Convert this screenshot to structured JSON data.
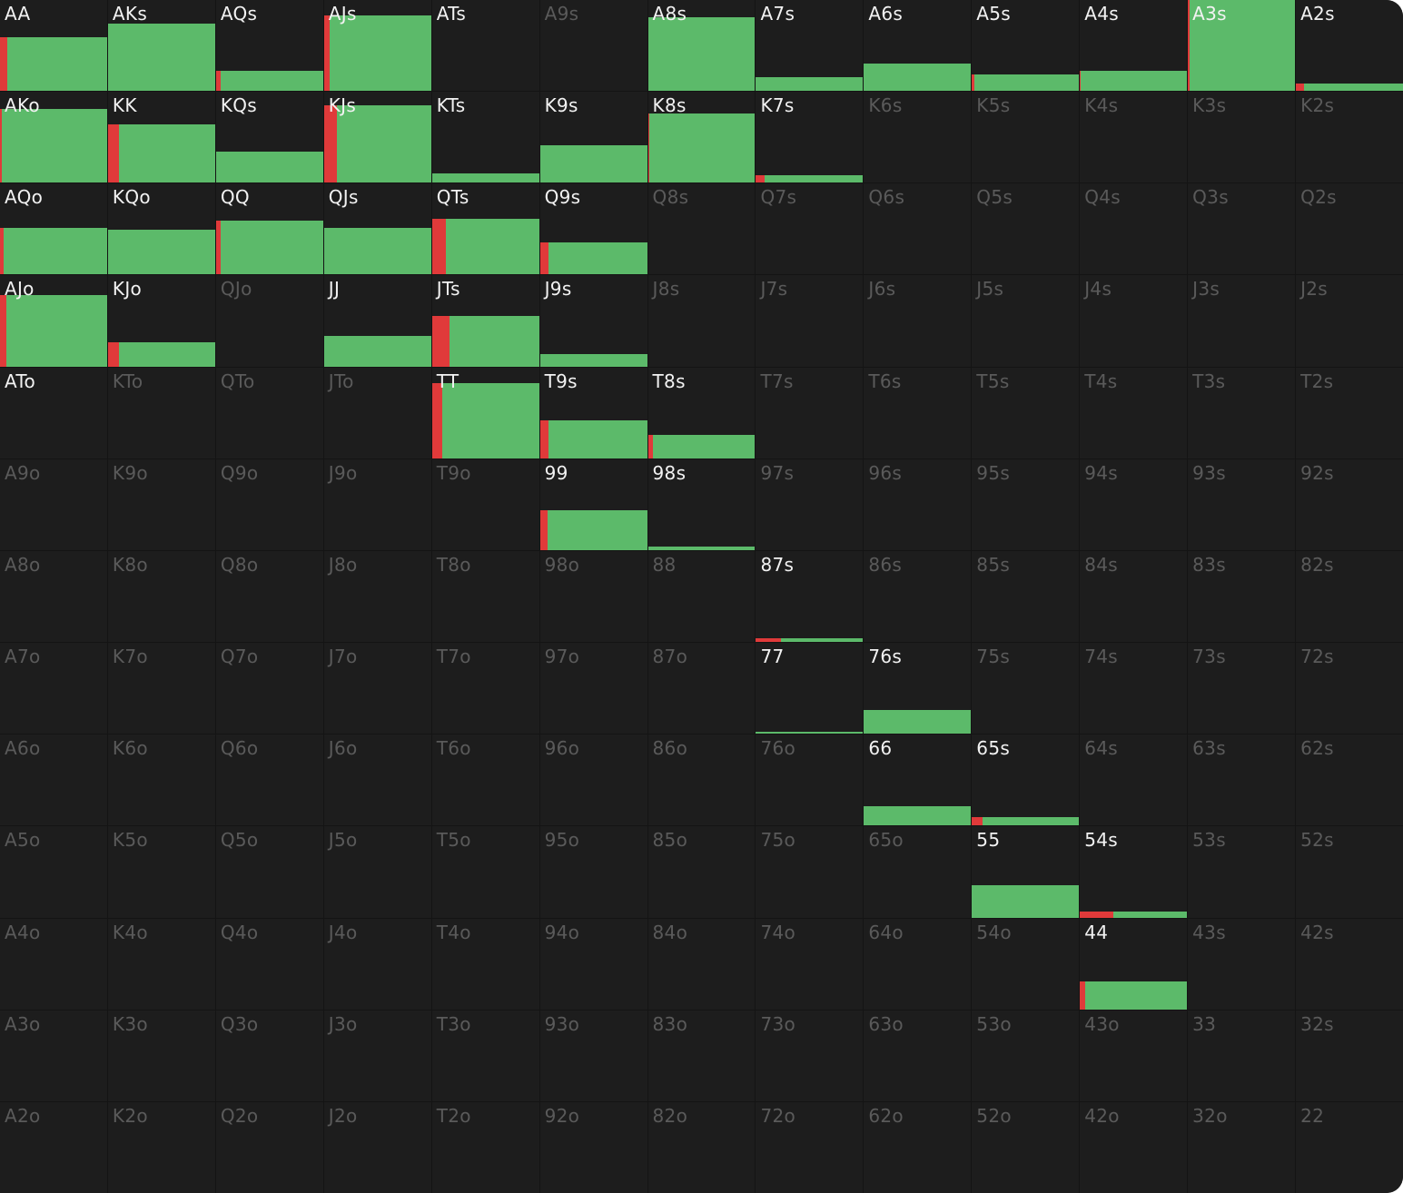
{
  "range_grid": {
    "colors": {
      "raise": "#e03a3a",
      "call": "#5cba6a",
      "cell_bg": "#1d1d1d",
      "inactive_text": "#5a5a5a",
      "active_text": "#f2f2f2"
    },
    "cells": [
      {
        "hand": "AA",
        "active": true,
        "freq": 0.59,
        "raise": 0.07
      },
      {
        "hand": "AKs",
        "active": true,
        "freq": 0.74,
        "raise": 0
      },
      {
        "hand": "AQs",
        "active": true,
        "freq": 0.22,
        "raise": 0.04
      },
      {
        "hand": "AJs",
        "active": true,
        "freq": 0.83,
        "raise": 0.05
      },
      {
        "hand": "ATs",
        "active": true,
        "freq": 0,
        "raise": 0
      },
      {
        "hand": "A9s",
        "active": false,
        "freq": 0,
        "raise": 0
      },
      {
        "hand": "A8s",
        "active": true,
        "freq": 0.81,
        "raise": 0
      },
      {
        "hand": "A7s",
        "active": true,
        "freq": 0.15,
        "raise": 0
      },
      {
        "hand": "A6s",
        "active": true,
        "freq": 0.3,
        "raise": 0
      },
      {
        "hand": "A5s",
        "active": true,
        "freq": 0.18,
        "raise": 0.02
      },
      {
        "hand": "A4s",
        "active": true,
        "freq": 0.22,
        "raise": 0.01
      },
      {
        "hand": "A3s",
        "active": true,
        "freq": 1.0,
        "raise": 0.02
      },
      {
        "hand": "A2s",
        "active": true,
        "freq": 0.08,
        "raise": 0.08
      },
      {
        "hand": "AKo",
        "active": true,
        "freq": 0.81,
        "raise": 0.02
      },
      {
        "hand": "KK",
        "active": true,
        "freq": 0.64,
        "raise": 0.1
      },
      {
        "hand": "KQs",
        "active": true,
        "freq": 0.34,
        "raise": 0
      },
      {
        "hand": "KJs",
        "active": true,
        "freq": 0.85,
        "raise": 0.12
      },
      {
        "hand": "KTs",
        "active": true,
        "freq": 0.1,
        "raise": 0
      },
      {
        "hand": "K9s",
        "active": true,
        "freq": 0.41,
        "raise": 0
      },
      {
        "hand": "K8s",
        "active": true,
        "freq": 0.76,
        "raise": 0.01
      },
      {
        "hand": "K7s",
        "active": true,
        "freq": 0.08,
        "raise": 0.08
      },
      {
        "hand": "K6s",
        "active": false,
        "freq": 0,
        "raise": 0
      },
      {
        "hand": "K5s",
        "active": false,
        "freq": 0,
        "raise": 0
      },
      {
        "hand": "K4s",
        "active": false,
        "freq": 0,
        "raise": 0
      },
      {
        "hand": "K3s",
        "active": false,
        "freq": 0,
        "raise": 0
      },
      {
        "hand": "K2s",
        "active": false,
        "freq": 0,
        "raise": 0
      },
      {
        "hand": "AQo",
        "active": true,
        "freq": 0.51,
        "raise": 0.03
      },
      {
        "hand": "KQo",
        "active": true,
        "freq": 0.49,
        "raise": 0
      },
      {
        "hand": "QQ",
        "active": true,
        "freq": 0.59,
        "raise": 0.04
      },
      {
        "hand": "QJs",
        "active": true,
        "freq": 0.51,
        "raise": 0
      },
      {
        "hand": "QTs",
        "active": true,
        "freq": 0.61,
        "raise": 0.13
      },
      {
        "hand": "Q9s",
        "active": true,
        "freq": 0.35,
        "raise": 0.08
      },
      {
        "hand": "Q8s",
        "active": false,
        "freq": 0,
        "raise": 0
      },
      {
        "hand": "Q7s",
        "active": false,
        "freq": 0,
        "raise": 0
      },
      {
        "hand": "Q6s",
        "active": false,
        "freq": 0,
        "raise": 0
      },
      {
        "hand": "Q5s",
        "active": false,
        "freq": 0,
        "raise": 0
      },
      {
        "hand": "Q4s",
        "active": false,
        "freq": 0,
        "raise": 0
      },
      {
        "hand": "Q3s",
        "active": false,
        "freq": 0,
        "raise": 0
      },
      {
        "hand": "Q2s",
        "active": false,
        "freq": 0,
        "raise": 0
      },
      {
        "hand": "AJo",
        "active": true,
        "freq": 0.79,
        "raise": 0.06
      },
      {
        "hand": "KJo",
        "active": true,
        "freq": 0.27,
        "raise": 0.1
      },
      {
        "hand": "QJo",
        "active": false,
        "freq": 0,
        "raise": 0
      },
      {
        "hand": "JJ",
        "active": true,
        "freq": 0.34,
        "raise": 0
      },
      {
        "hand": "JTs",
        "active": true,
        "freq": 0.56,
        "raise": 0.16
      },
      {
        "hand": "J9s",
        "active": true,
        "freq": 0.14,
        "raise": 0
      },
      {
        "hand": "J8s",
        "active": false,
        "freq": 0,
        "raise": 0
      },
      {
        "hand": "J7s",
        "active": false,
        "freq": 0,
        "raise": 0
      },
      {
        "hand": "J6s",
        "active": false,
        "freq": 0,
        "raise": 0
      },
      {
        "hand": "J5s",
        "active": false,
        "freq": 0,
        "raise": 0
      },
      {
        "hand": "J4s",
        "active": false,
        "freq": 0,
        "raise": 0
      },
      {
        "hand": "J3s",
        "active": false,
        "freq": 0,
        "raise": 0
      },
      {
        "hand": "J2s",
        "active": false,
        "freq": 0,
        "raise": 0
      },
      {
        "hand": "ATo",
        "active": true,
        "freq": 0,
        "raise": 0
      },
      {
        "hand": "KTo",
        "active": false,
        "freq": 0,
        "raise": 0
      },
      {
        "hand": "QTo",
        "active": false,
        "freq": 0,
        "raise": 0
      },
      {
        "hand": "JTo",
        "active": false,
        "freq": 0,
        "raise": 0
      },
      {
        "hand": "TT",
        "active": true,
        "freq": 0.83,
        "raise": 0.1
      },
      {
        "hand": "T9s",
        "active": true,
        "freq": 0.42,
        "raise": 0.08
      },
      {
        "hand": "T8s",
        "active": true,
        "freq": 0.26,
        "raise": 0.05
      },
      {
        "hand": "T7s",
        "active": false,
        "freq": 0,
        "raise": 0
      },
      {
        "hand": "T6s",
        "active": false,
        "freq": 0,
        "raise": 0
      },
      {
        "hand": "T5s",
        "active": false,
        "freq": 0,
        "raise": 0
      },
      {
        "hand": "T4s",
        "active": false,
        "freq": 0,
        "raise": 0
      },
      {
        "hand": "T3s",
        "active": false,
        "freq": 0,
        "raise": 0
      },
      {
        "hand": "T2s",
        "active": false,
        "freq": 0,
        "raise": 0
      },
      {
        "hand": "A9o",
        "active": false,
        "freq": 0,
        "raise": 0
      },
      {
        "hand": "K9o",
        "active": false,
        "freq": 0,
        "raise": 0
      },
      {
        "hand": "Q9o",
        "active": false,
        "freq": 0,
        "raise": 0
      },
      {
        "hand": "J9o",
        "active": false,
        "freq": 0,
        "raise": 0
      },
      {
        "hand": "T9o",
        "active": false,
        "freq": 0,
        "raise": 0
      },
      {
        "hand": "99",
        "active": true,
        "freq": 0.44,
        "raise": 0.07
      },
      {
        "hand": "98s",
        "active": true,
        "freq": 0.04,
        "raise": 0
      },
      {
        "hand": "97s",
        "active": false,
        "freq": 0,
        "raise": 0
      },
      {
        "hand": "96s",
        "active": false,
        "freq": 0,
        "raise": 0
      },
      {
        "hand": "95s",
        "active": false,
        "freq": 0,
        "raise": 0
      },
      {
        "hand": "94s",
        "active": false,
        "freq": 0,
        "raise": 0
      },
      {
        "hand": "93s",
        "active": false,
        "freq": 0,
        "raise": 0
      },
      {
        "hand": "92s",
        "active": false,
        "freq": 0,
        "raise": 0
      },
      {
        "hand": "A8o",
        "active": false,
        "freq": 0,
        "raise": 0
      },
      {
        "hand": "K8o",
        "active": false,
        "freq": 0,
        "raise": 0
      },
      {
        "hand": "Q8o",
        "active": false,
        "freq": 0,
        "raise": 0
      },
      {
        "hand": "J8o",
        "active": false,
        "freq": 0,
        "raise": 0
      },
      {
        "hand": "T8o",
        "active": false,
        "freq": 0,
        "raise": 0
      },
      {
        "hand": "98o",
        "active": false,
        "freq": 0,
        "raise": 0
      },
      {
        "hand": "88",
        "active": false,
        "freq": 0,
        "raise": 0
      },
      {
        "hand": "87s",
        "active": true,
        "freq": 0.04,
        "raise": 0.23
      },
      {
        "hand": "86s",
        "active": false,
        "freq": 0,
        "raise": 0
      },
      {
        "hand": "85s",
        "active": false,
        "freq": 0,
        "raise": 0
      },
      {
        "hand": "84s",
        "active": false,
        "freq": 0,
        "raise": 0
      },
      {
        "hand": "83s",
        "active": false,
        "freq": 0,
        "raise": 0
      },
      {
        "hand": "82s",
        "active": false,
        "freq": 0,
        "raise": 0
      },
      {
        "hand": "A7o",
        "active": false,
        "freq": 0,
        "raise": 0
      },
      {
        "hand": "K7o",
        "active": false,
        "freq": 0,
        "raise": 0
      },
      {
        "hand": "Q7o",
        "active": false,
        "freq": 0,
        "raise": 0
      },
      {
        "hand": "J7o",
        "active": false,
        "freq": 0,
        "raise": 0
      },
      {
        "hand": "T7o",
        "active": false,
        "freq": 0,
        "raise": 0
      },
      {
        "hand": "97o",
        "active": false,
        "freq": 0,
        "raise": 0
      },
      {
        "hand": "87o",
        "active": false,
        "freq": 0,
        "raise": 0
      },
      {
        "hand": "77",
        "active": true,
        "freq": 0.02,
        "raise": 0
      },
      {
        "hand": "76s",
        "active": true,
        "freq": 0.26,
        "raise": 0
      },
      {
        "hand": "75s",
        "active": false,
        "freq": 0,
        "raise": 0
      },
      {
        "hand": "74s",
        "active": false,
        "freq": 0,
        "raise": 0
      },
      {
        "hand": "73s",
        "active": false,
        "freq": 0,
        "raise": 0
      },
      {
        "hand": "72s",
        "active": false,
        "freq": 0,
        "raise": 0
      },
      {
        "hand": "A6o",
        "active": false,
        "freq": 0,
        "raise": 0
      },
      {
        "hand": "K6o",
        "active": false,
        "freq": 0,
        "raise": 0
      },
      {
        "hand": "Q6o",
        "active": false,
        "freq": 0,
        "raise": 0
      },
      {
        "hand": "J6o",
        "active": false,
        "freq": 0,
        "raise": 0
      },
      {
        "hand": "T6o",
        "active": false,
        "freq": 0,
        "raise": 0
      },
      {
        "hand": "96o",
        "active": false,
        "freq": 0,
        "raise": 0
      },
      {
        "hand": "86o",
        "active": false,
        "freq": 0,
        "raise": 0
      },
      {
        "hand": "76o",
        "active": false,
        "freq": 0,
        "raise": 0
      },
      {
        "hand": "66",
        "active": true,
        "freq": 0.21,
        "raise": 0
      },
      {
        "hand": "65s",
        "active": true,
        "freq": 0.09,
        "raise": 0.1
      },
      {
        "hand": "64s",
        "active": false,
        "freq": 0,
        "raise": 0
      },
      {
        "hand": "63s",
        "active": false,
        "freq": 0,
        "raise": 0
      },
      {
        "hand": "62s",
        "active": false,
        "freq": 0,
        "raise": 0
      },
      {
        "hand": "A5o",
        "active": false,
        "freq": 0,
        "raise": 0
      },
      {
        "hand": "K5o",
        "active": false,
        "freq": 0,
        "raise": 0
      },
      {
        "hand": "Q5o",
        "active": false,
        "freq": 0,
        "raise": 0
      },
      {
        "hand": "J5o",
        "active": false,
        "freq": 0,
        "raise": 0
      },
      {
        "hand": "T5o",
        "active": false,
        "freq": 0,
        "raise": 0
      },
      {
        "hand": "95o",
        "active": false,
        "freq": 0,
        "raise": 0
      },
      {
        "hand": "85o",
        "active": false,
        "freq": 0,
        "raise": 0
      },
      {
        "hand": "75o",
        "active": false,
        "freq": 0,
        "raise": 0
      },
      {
        "hand": "65o",
        "active": false,
        "freq": 0,
        "raise": 0
      },
      {
        "hand": "55",
        "active": true,
        "freq": 0.35,
        "raise": 0
      },
      {
        "hand": "54s",
        "active": true,
        "freq": 0.07,
        "raise": 0.31
      },
      {
        "hand": "53s",
        "active": false,
        "freq": 0,
        "raise": 0
      },
      {
        "hand": "52s",
        "active": false,
        "freq": 0,
        "raise": 0
      },
      {
        "hand": "A4o",
        "active": false,
        "freq": 0,
        "raise": 0
      },
      {
        "hand": "K4o",
        "active": false,
        "freq": 0,
        "raise": 0
      },
      {
        "hand": "Q4o",
        "active": false,
        "freq": 0,
        "raise": 0
      },
      {
        "hand": "J4o",
        "active": false,
        "freq": 0,
        "raise": 0
      },
      {
        "hand": "T4o",
        "active": false,
        "freq": 0,
        "raise": 0
      },
      {
        "hand": "94o",
        "active": false,
        "freq": 0,
        "raise": 0
      },
      {
        "hand": "84o",
        "active": false,
        "freq": 0,
        "raise": 0
      },
      {
        "hand": "74o",
        "active": false,
        "freq": 0,
        "raise": 0
      },
      {
        "hand": "64o",
        "active": false,
        "freq": 0,
        "raise": 0
      },
      {
        "hand": "54o",
        "active": false,
        "freq": 0,
        "raise": 0
      },
      {
        "hand": "44",
        "active": true,
        "freq": 0.31,
        "raise": 0.05
      },
      {
        "hand": "43s",
        "active": false,
        "freq": 0,
        "raise": 0
      },
      {
        "hand": "42s",
        "active": false,
        "freq": 0,
        "raise": 0
      },
      {
        "hand": "A3o",
        "active": false,
        "freq": 0,
        "raise": 0
      },
      {
        "hand": "K3o",
        "active": false,
        "freq": 0,
        "raise": 0
      },
      {
        "hand": "Q3o",
        "active": false,
        "freq": 0,
        "raise": 0
      },
      {
        "hand": "J3o",
        "active": false,
        "freq": 0,
        "raise": 0
      },
      {
        "hand": "T3o",
        "active": false,
        "freq": 0,
        "raise": 0
      },
      {
        "hand": "93o",
        "active": false,
        "freq": 0,
        "raise": 0
      },
      {
        "hand": "83o",
        "active": false,
        "freq": 0,
        "raise": 0
      },
      {
        "hand": "73o",
        "active": false,
        "freq": 0,
        "raise": 0
      },
      {
        "hand": "63o",
        "active": false,
        "freq": 0,
        "raise": 0
      },
      {
        "hand": "53o",
        "active": false,
        "freq": 0,
        "raise": 0
      },
      {
        "hand": "43o",
        "active": false,
        "freq": 0,
        "raise": 0
      },
      {
        "hand": "33",
        "active": false,
        "freq": 0,
        "raise": 0
      },
      {
        "hand": "32s",
        "active": false,
        "freq": 0,
        "raise": 0
      },
      {
        "hand": "A2o",
        "active": false,
        "freq": 0,
        "raise": 0
      },
      {
        "hand": "K2o",
        "active": false,
        "freq": 0,
        "raise": 0
      },
      {
        "hand": "Q2o",
        "active": false,
        "freq": 0,
        "raise": 0
      },
      {
        "hand": "J2o",
        "active": false,
        "freq": 0,
        "raise": 0
      },
      {
        "hand": "T2o",
        "active": false,
        "freq": 0,
        "raise": 0
      },
      {
        "hand": "92o",
        "active": false,
        "freq": 0,
        "raise": 0
      },
      {
        "hand": "82o",
        "active": false,
        "freq": 0,
        "raise": 0
      },
      {
        "hand": "72o",
        "active": false,
        "freq": 0,
        "raise": 0
      },
      {
        "hand": "62o",
        "active": false,
        "freq": 0,
        "raise": 0
      },
      {
        "hand": "52o",
        "active": false,
        "freq": 0,
        "raise": 0
      },
      {
        "hand": "42o",
        "active": false,
        "freq": 0,
        "raise": 0
      },
      {
        "hand": "32o",
        "active": false,
        "freq": 0,
        "raise": 0
      },
      {
        "hand": "22",
        "active": false,
        "freq": 0,
        "raise": 0
      }
    ]
  }
}
